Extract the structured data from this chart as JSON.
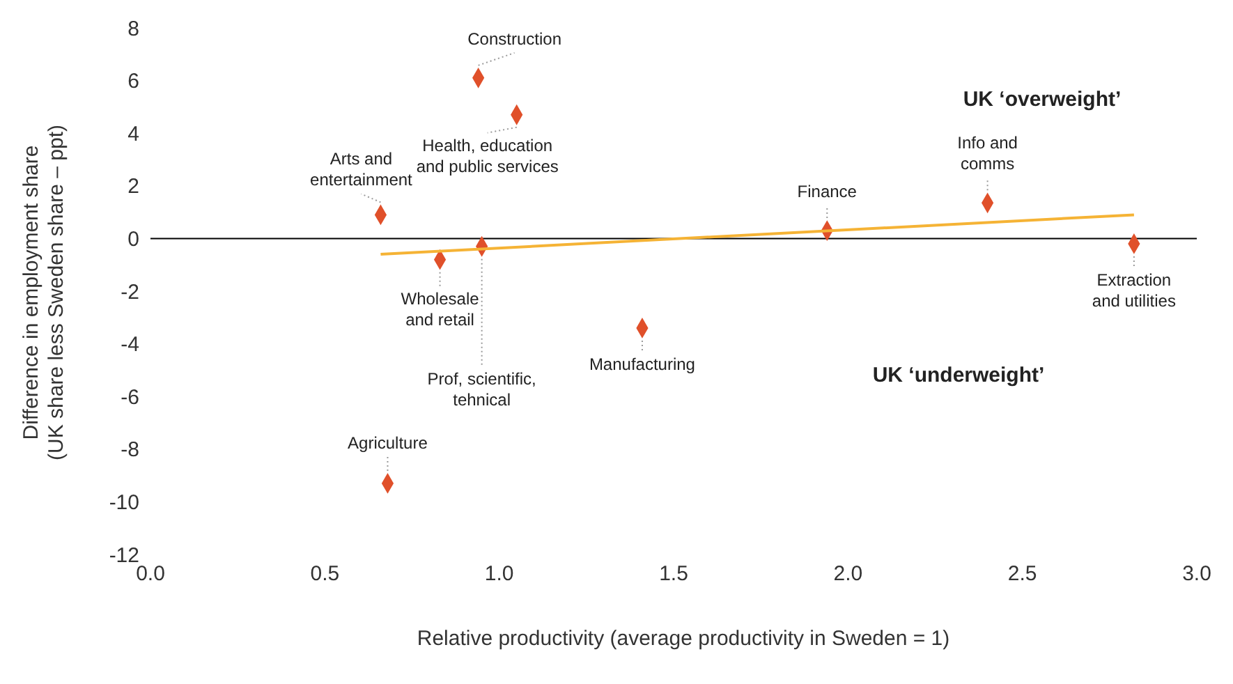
{
  "chart_data": {
    "type": "scatter",
    "xlabel": "Relative productivity (average productivity in Sweden = 1)",
    "ylabel": "Difference in employment share\n(UK share less Sweden share – ppt)",
    "xlim": [
      0,
      3
    ],
    "xticks": [
      {
        "value": 0,
        "label": "0.0"
      },
      {
        "value": 0.5,
        "label": "0.5"
      },
      {
        "value": 1,
        "label": "1.0"
      },
      {
        "value": 1.5,
        "label": "1.5"
      },
      {
        "value": 2,
        "label": "2.0"
      },
      {
        "value": 2.5,
        "label": "2.5"
      },
      {
        "value": 3,
        "label": "3.0"
      }
    ],
    "ylim": [
      -12,
      8
    ],
    "yticks": [
      -12,
      -10,
      -8,
      -6,
      -4,
      -2,
      0,
      2,
      4,
      6,
      8
    ],
    "grid": false,
    "series": [
      {
        "type": "scatter",
        "marker": "diamond",
        "color": "#e0502a",
        "x": [
          0.66,
          0.94,
          1.05,
          0.83,
          0.95,
          1.41,
          0.68,
          1.94,
          2.4,
          2.82
        ],
        "values": [
          0.9,
          6.1,
          4.7,
          -0.8,
          -0.3,
          -3.4,
          -9.3,
          0.3,
          1.35,
          -0.2
        ]
      },
      {
        "type": "line",
        "marker": "none",
        "color": "#f5b335",
        "x": [
          0.66,
          2.82
        ],
        "values": [
          -0.6,
          0.9
        ]
      }
    ],
    "ref_lines": [
      {
        "axis": "y",
        "value": 0,
        "color": "#000000"
      }
    ],
    "annotations": [
      {
        "text": "Arts and\nentertainment",
        "x": 0.66,
        "y": 0.9
      },
      {
        "text": "Construction",
        "x": 0.94,
        "y": 6.1
      },
      {
        "text": "Health, education\nand public services",
        "x": 1.05,
        "y": 4.7
      },
      {
        "text": "Wholesale\nand retail",
        "x": 0.83,
        "y": -0.8
      },
      {
        "text": "Prof, scientific,\ntehnical",
        "x": 0.95,
        "y": -0.3
      },
      {
        "text": "Manufacturing",
        "x": 1.41,
        "y": -3.4
      },
      {
        "text": "Agriculture",
        "x": 0.68,
        "y": -9.3
      },
      {
        "text": "Finance",
        "x": 1.94,
        "y": 0.3
      },
      {
        "text": "Info and\ncomms",
        "x": 2.4,
        "y": 1.35
      },
      {
        "text": "Extraction\nand utilities",
        "x": 2.82,
        "y": -0.2
      },
      "UK ‘overweight’",
      "UK ‘underweight’"
    ]
  }
}
